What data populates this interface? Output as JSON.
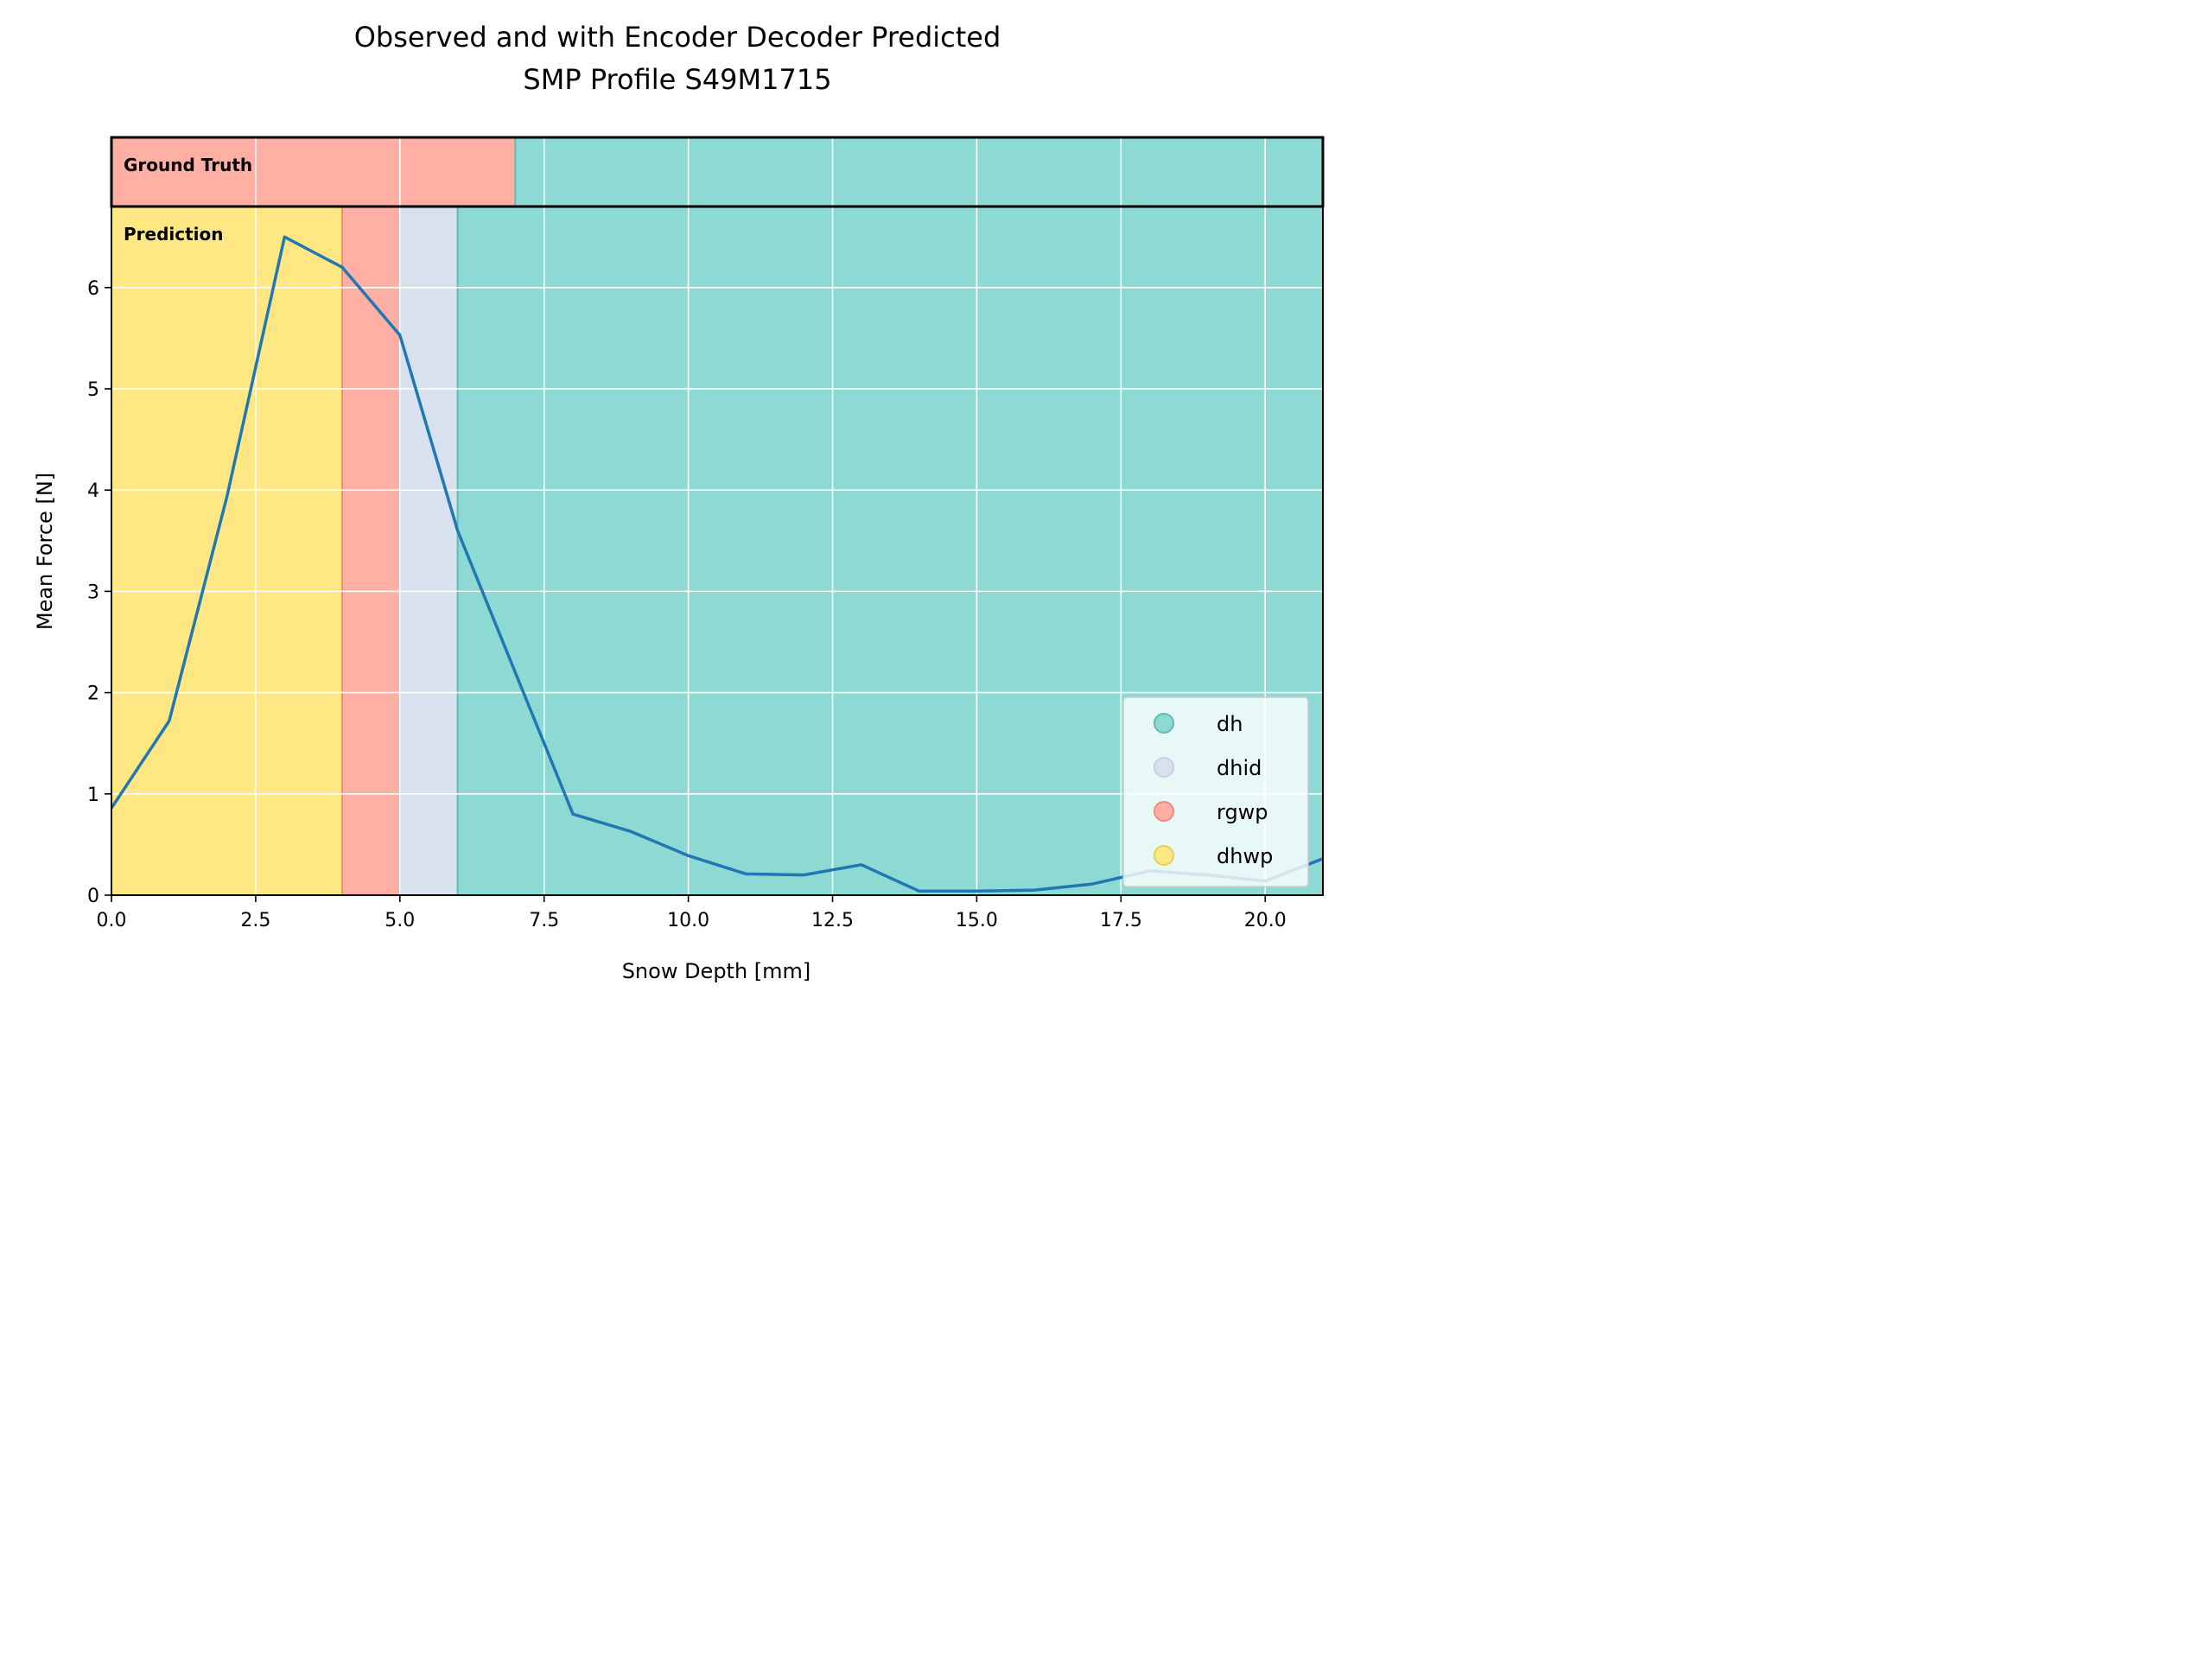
{
  "chart_data": {
    "type": "line",
    "title": "Observed and with Encoder Decoder Predicted",
    "subtitle": "SMP Profile S49M1715",
    "xlabel": "Snow Depth [mm]",
    "ylabel": "Mean Force [N]",
    "xlim": [
      0,
      21
    ],
    "ylim": [
      0,
      6.8
    ],
    "xticks": [
      0.0,
      2.5,
      5.0,
      7.5,
      10.0,
      12.5,
      15.0,
      17.5,
      20.0
    ],
    "xtick_labels": [
      "0.0",
      "2.5",
      "5.0",
      "7.5",
      "10.0",
      "12.5",
      "15.0",
      "17.5",
      "20.0"
    ],
    "yticks": [
      0,
      1,
      2,
      3,
      4,
      5,
      6
    ],
    "ytick_labels": [
      "0",
      "1",
      "2",
      "3",
      "4",
      "5",
      "6"
    ],
    "grid": true,
    "series": [
      {
        "x": [
          0,
          1,
          2,
          3,
          4,
          5,
          6,
          7,
          8,
          9,
          10,
          11,
          12,
          13,
          14,
          15,
          16,
          17,
          18,
          19,
          20,
          21
        ],
        "values": [
          0.86,
          1.72,
          3.93,
          6.5,
          6.2,
          5.53,
          3.6,
          2.2,
          0.8,
          0.63,
          0.39,
          0.21,
          0.2,
          0.3,
          0.04,
          0.04,
          0.05,
          0.11,
          0.24,
          0.2,
          0.14,
          0.36
        ],
        "color": "#1f77b4"
      }
    ],
    "ground_truth": {
      "label": "Ground Truth",
      "segments": [
        {
          "class": "rgwp",
          "start": 0,
          "end": 7
        },
        {
          "class": "dh",
          "start": 7,
          "end": 21
        }
      ]
    },
    "prediction": {
      "label": "Prediction",
      "segments": [
        {
          "class": "dhwp",
          "start": 0,
          "end": 4
        },
        {
          "class": "rgwp",
          "start": 4,
          "end": 5
        },
        {
          "class": "dhid",
          "start": 5,
          "end": 6
        },
        {
          "class": "dh",
          "start": 6,
          "end": 21
        }
      ]
    },
    "classes": [
      {
        "name": "dh",
        "color": "#8dd9d3",
        "edge": "#5fbcb5"
      },
      {
        "name": "dhid",
        "color": "#d8e2ee",
        "edge": "#c2d0e0"
      },
      {
        "name": "rgwp",
        "color": "#ffafa3",
        "edge": "#f08a7b"
      },
      {
        "name": "dhwp",
        "color": "#ffe883",
        "edge": "#e8cf50"
      }
    ],
    "legend": {
      "placement": "lower-right",
      "entries": [
        "dh",
        "dhid",
        "rgwp",
        "dhwp"
      ]
    }
  }
}
